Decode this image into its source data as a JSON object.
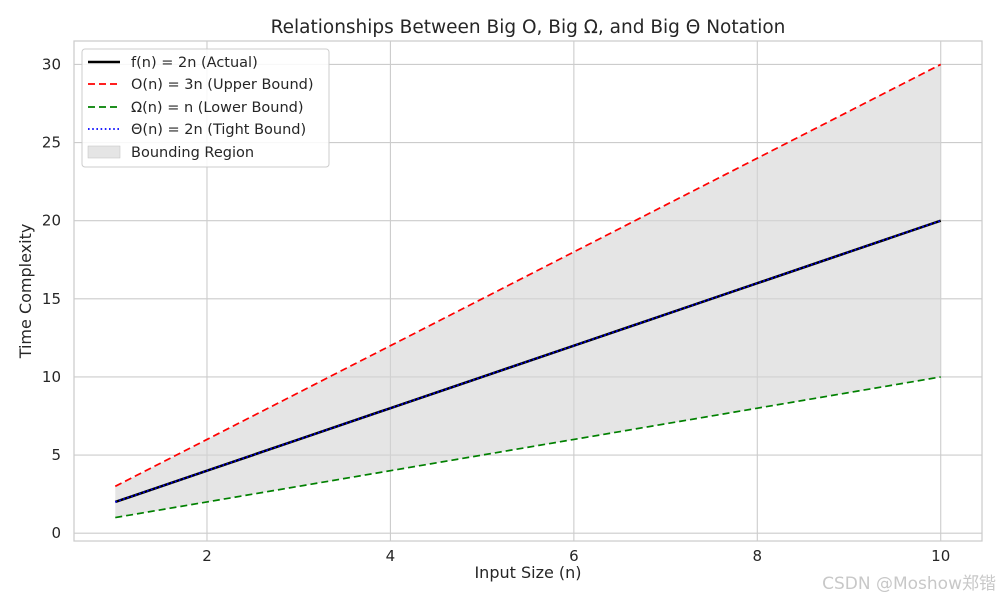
{
  "chart_data": {
    "type": "line",
    "title": "Relationships Between Big O, Big Ω, and Big Θ Notation",
    "xlabel": "Input Size (n)",
    "ylabel": "Time Complexity",
    "x": [
      1,
      2,
      3,
      4,
      5,
      6,
      7,
      8,
      9,
      10
    ],
    "xlim": [
      0.55,
      10.45
    ],
    "ylim": [
      -0.5,
      31.5
    ],
    "xticks": [
      2,
      4,
      6,
      8,
      10
    ],
    "yticks": [
      0,
      5,
      10,
      15,
      20,
      25,
      30
    ],
    "grid": true,
    "legend_position": "top-left",
    "series": [
      {
        "name": "f(n) = 2n (Actual)",
        "values": [
          2,
          4,
          6,
          8,
          10,
          12,
          14,
          16,
          18,
          20
        ],
        "color": "#000000",
        "style": "solid"
      },
      {
        "name": "O(n) = 3n (Upper Bound)",
        "values": [
          3,
          6,
          9,
          12,
          15,
          18,
          21,
          24,
          27,
          30
        ],
        "color": "#ff0000",
        "style": "dashed"
      },
      {
        "name": "Ω(n) = n (Lower Bound)",
        "values": [
          1,
          2,
          3,
          4,
          5,
          6,
          7,
          8,
          9,
          10
        ],
        "color": "#008000",
        "style": "dashed"
      },
      {
        "name": "Θ(n) = 2n (Tight Bound)",
        "values": [
          2,
          4,
          6,
          8,
          10,
          12,
          14,
          16,
          18,
          20
        ],
        "color": "#0000ff",
        "style": "dotted"
      }
    ],
    "region": {
      "name": "Bounding Region",
      "lower_series": 2,
      "upper_series": 1,
      "color": "#d3d3d3"
    }
  },
  "watermark": "CSDN @Moshow郑锴"
}
